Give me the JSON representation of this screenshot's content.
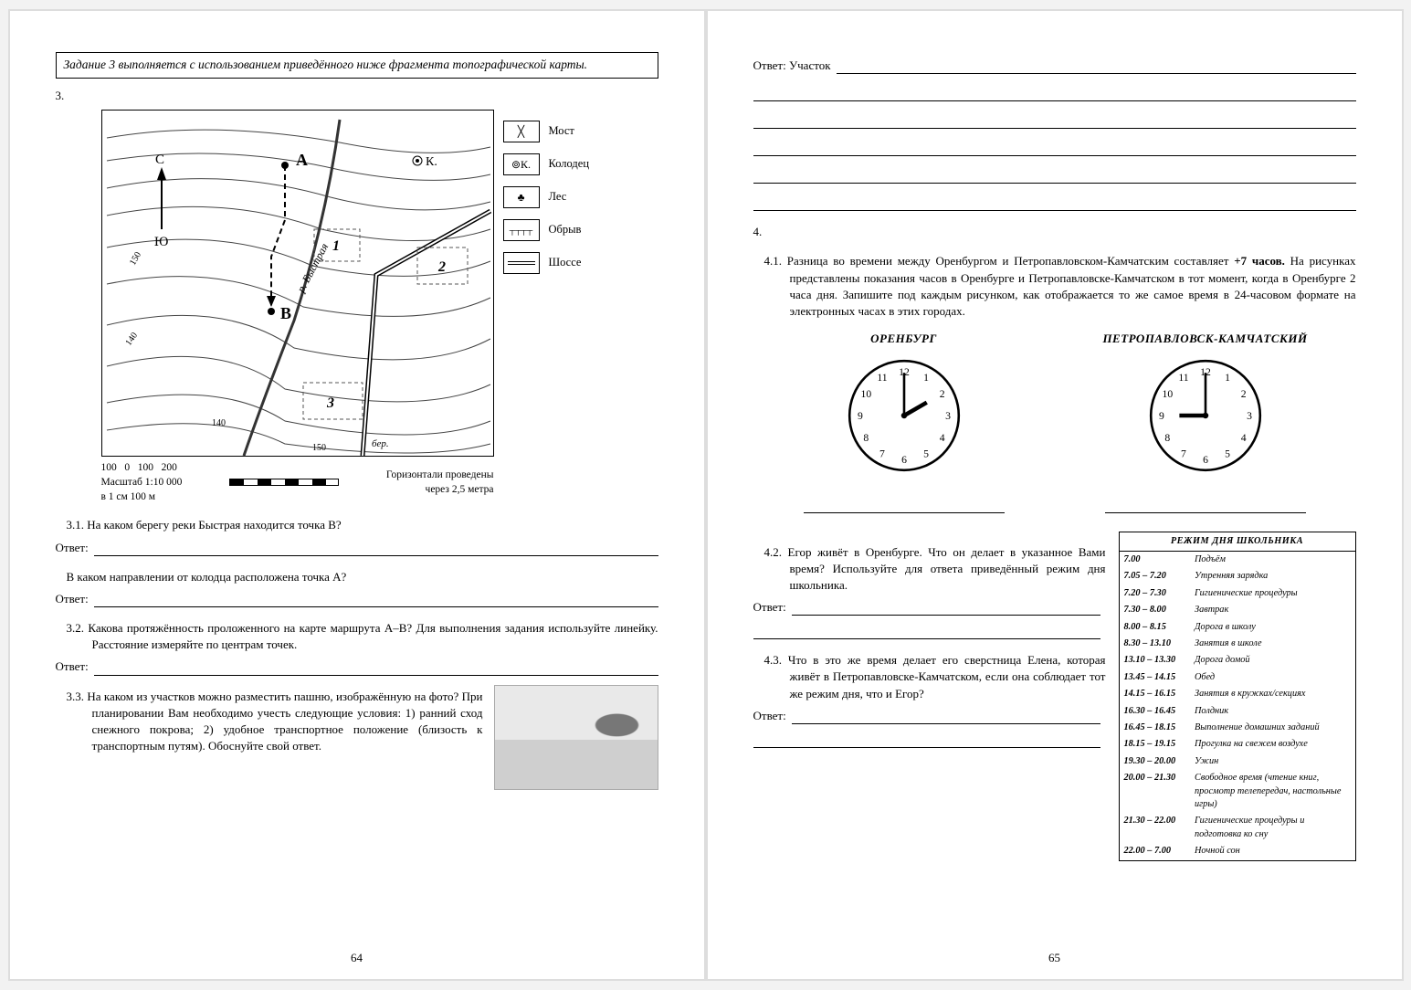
{
  "left": {
    "instruction": "Задание 3 выполняется с использованием приведённого ниже фрагмента топографической карты.",
    "task_number": "3.",
    "map": {
      "labels": {
        "A": "А",
        "B": "В",
        "K": "К.",
        "C": "С",
        "Yu": "Ю",
        "n1": "1",
        "n2": "2",
        "n3": "3",
        "river": "р. Быстрая",
        "bereg": "бер."
      },
      "contours": [
        "150",
        "140",
        "140",
        "150"
      ]
    },
    "legend": [
      {
        "icon": "bridge",
        "label": "Мост"
      },
      {
        "icon": "well",
        "label": "Колодец"
      },
      {
        "icon": "forest",
        "label": "Лес"
      },
      {
        "icon": "cliff",
        "label": "Обрыв"
      },
      {
        "icon": "road",
        "label": "Шоссе"
      }
    ],
    "well_symbol": "⊚К.",
    "scale": {
      "ticks": [
        "100",
        "0",
        "100",
        "200"
      ],
      "line1": "Масштаб 1:10 000",
      "line2": "в 1 см 100 м",
      "right1": "Горизонтали проведены",
      "right2": "через 2,5 метра"
    },
    "q31": "3.1. На каком берегу реки Быстрая находится точка В?",
    "q31b": "В каком направлении от колодца расположена точка А?",
    "q32": "3.2. Какова протяжённость проложенного на карте маршрута А–В? Для выполнения задания используйте линейку. Расстояние измеряйте по центрам точек.",
    "q33": "3.3. На каком из участков можно разместить пашню, изображённую на фото? При планировании Вам необходимо учесть следующие условия: 1) ранний сход снежного покрова; 2) удобное транспортное положение (близость к транспортным путям). Обоснуйте свой ответ.",
    "answer_label": "Ответ:",
    "page_num": "64"
  },
  "right": {
    "answer_uchastok": "Ответ: Участок",
    "task_number": "4.",
    "q41": "4.1. Разница во времени между Оренбургом и Петропавловском-Камчатским составляет +7 часов. На рисунках представлены показания часов в Оренбурге и Петропавловске-Камчатском в тот момент, когда в Оренбурге 2 часа дня. Запишите под каждым рисунком, как отображается то же самое время в 24-часовом формате на электронных часах в этих городах.",
    "bold_plus7": "+7 часов.",
    "city1": "ОРЕНБУРГ",
    "city2": "ПЕТРОПАВЛОВСК-КАМЧАТСКИЙ",
    "clock1": {
      "hour_angle": 60,
      "minute_angle": 0
    },
    "clock2": {
      "hour_angle": 270,
      "minute_angle": 0
    },
    "clock_numbers": [
      "12",
      "1",
      "2",
      "3",
      "4",
      "5",
      "6",
      "7",
      "8",
      "9",
      "10",
      "11"
    ],
    "q42": "4.2. Егор живёт в Оренбурге. Что он делает в указанное Вами время? Используйте для ответа приведённый режим дня школьника.",
    "q43": "4.3. Что в это же время делает его сверстница Елена, которая живёт в Петропавловске-Камчатском, если она соблюдает тот же режим дня, что и Егор?",
    "answer_label": "Ответ:",
    "schedule_title": "РЕЖИМ ДНЯ ШКОЛЬНИКА",
    "schedule": [
      [
        "7.00",
        "Подъём"
      ],
      [
        "7.05 – 7.20",
        "Утренняя зарядка"
      ],
      [
        "7.20 – 7.30",
        "Гигиенические процедуры"
      ],
      [
        "7.30 – 8.00",
        "Завтрак"
      ],
      [
        "8.00 – 8.15",
        "Дорога в школу"
      ],
      [
        "8.30 – 13.10",
        "Занятия в школе"
      ],
      [
        "13.10 – 13.30",
        "Дорога домой"
      ],
      [
        "13.45 – 14.15",
        "Обед"
      ],
      [
        "14.15 – 16.15",
        "Занятия в кружках/секциях"
      ],
      [
        "16.30 – 16.45",
        "Полдник"
      ],
      [
        "16.45 – 18.15",
        "Выполнение домашних заданий"
      ],
      [
        "18.15 – 19.15",
        "Прогулка на свежем воздухе"
      ],
      [
        "19.30 – 20.00",
        "Ужин"
      ],
      [
        "20.00 – 21.30",
        "Свободное время (чтение книг, просмотр телепередач, настольные игры)"
      ],
      [
        "21.30 – 22.00",
        "Гигиенические процедуры и подготовка ко сну"
      ],
      [
        "22.00 – 7.00",
        "Ночной сон"
      ]
    ],
    "page_num": "65"
  }
}
